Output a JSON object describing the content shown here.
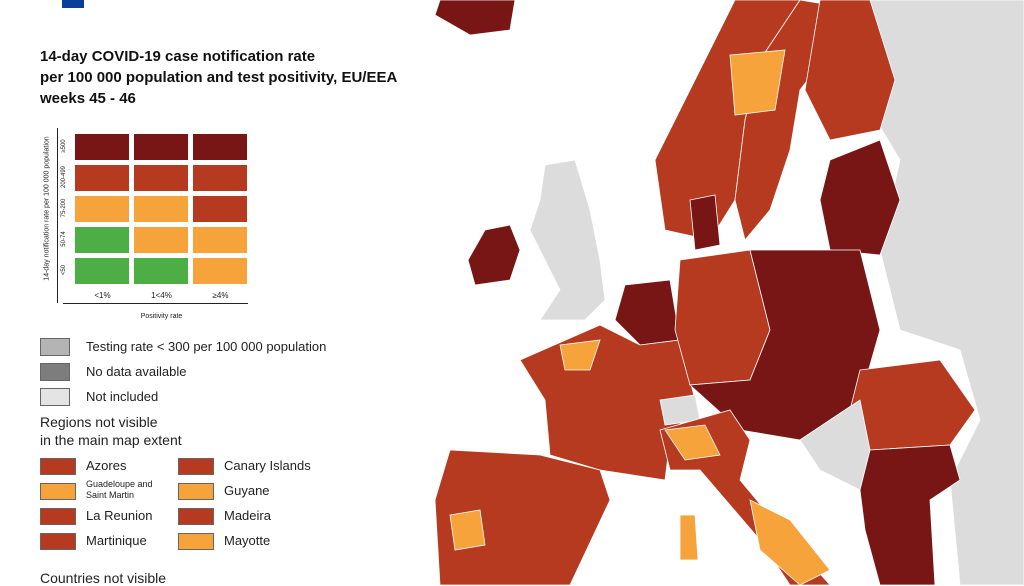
{
  "title_lines": [
    "14-day COVID-19 case notification rate",
    "per 100 000 population and test positivity, EU/EEA",
    "weeks 45 - 46"
  ],
  "legend_matrix": {
    "y_label": "14-day notification rate per 100 000 population",
    "x_label": "Positivity rate",
    "rows": [
      "≥500",
      "200-499",
      "75-200",
      "50-74",
      "<50"
    ],
    "columns": [
      "<1%",
      "1<4%",
      "≥4%"
    ],
    "cell_colors": [
      [
        "#781616",
        "#781616",
        "#781616"
      ],
      [
        "#b53a20",
        "#b53a20",
        "#b53a20"
      ],
      [
        "#f5a33a",
        "#f5a33a",
        "#b53a20"
      ],
      [
        "#4cae44",
        "#f5a33a",
        "#f5a33a"
      ],
      [
        "#4cae44",
        "#4cae44",
        "#f5a33a"
      ]
    ]
  },
  "status_legend": [
    {
      "label": "Testing rate < 300 per 100 000 population",
      "color": "#b4b4b4"
    },
    {
      "label": "No data available",
      "color": "#7d7d7d"
    },
    {
      "label": "Not included",
      "color": "#e4e4e4"
    }
  ],
  "regions_heading": [
    "Regions not visible",
    "in the main map extent"
  ],
  "regions": [
    {
      "name": "Azores",
      "color": "#b53a20"
    },
    {
      "name": "Canary Islands",
      "color": "#b53a20"
    },
    {
      "name": "Guadeloupe and Saint Martin",
      "color": "#f5a33a"
    },
    {
      "name": "Guyane",
      "color": "#f5a33a"
    },
    {
      "name": "La Reunion",
      "color": "#b53a20"
    },
    {
      "name": "Madeira",
      "color": "#b53a20"
    },
    {
      "name": "Martinique",
      "color": "#b53a20"
    },
    {
      "name": "Mayotte",
      "color": "#f5a33a"
    }
  ],
  "countries_heading": "Countries not visible"
}
